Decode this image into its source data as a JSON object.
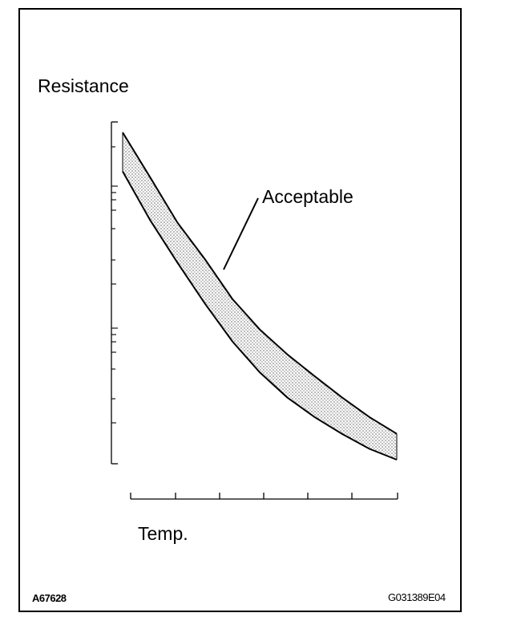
{
  "chart_data": {
    "type": "area",
    "xlabel": "Temp.",
    "ylabel": "Resistance",
    "y_scale": "log",
    "grid": false,
    "series": [
      {
        "name": "Acceptable",
        "upper": [
          [
            0,
            10
          ],
          [
            0.1,
            7.3
          ],
          [
            0.2,
            5.3
          ],
          [
            0.3,
            4.1
          ],
          [
            0.4,
            3.1
          ],
          [
            0.5,
            2.5
          ],
          [
            0.6,
            2.1
          ],
          [
            0.7,
            1.8
          ],
          [
            0.8,
            1.55
          ],
          [
            0.9,
            1.35
          ],
          [
            1.0,
            1.2
          ]
        ],
        "lower": [
          [
            0,
            7.6
          ],
          [
            0.1,
            5.4
          ],
          [
            0.2,
            4.0
          ],
          [
            0.3,
            3.0
          ],
          [
            0.4,
            2.3
          ],
          [
            0.5,
            1.85
          ],
          [
            0.6,
            1.55
          ],
          [
            0.7,
            1.35
          ],
          [
            0.8,
            1.2
          ],
          [
            0.9,
            1.08
          ],
          [
            1.0,
            1.0
          ]
        ]
      }
    ],
    "annotations": [
      "Acceptable"
    ]
  },
  "figure_codes": {
    "left": "A67628",
    "right": "G031389E04"
  },
  "colors": {
    "band_fill": "#bdbdbd",
    "line": "#000000",
    "frame": "#000000"
  }
}
